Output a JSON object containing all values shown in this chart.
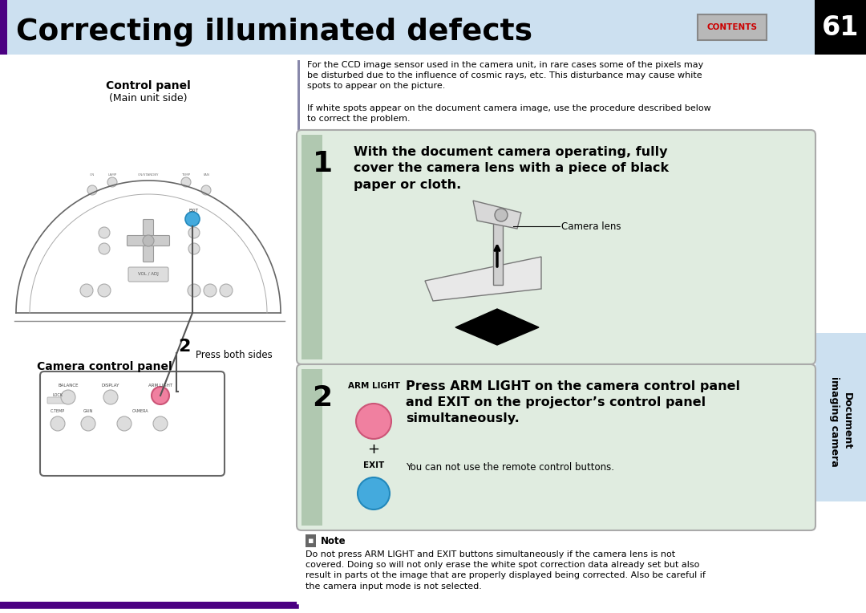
{
  "title": "Correcting illuminated defects",
  "page_number": "61",
  "bg_color": "#ffffff",
  "header_bg": "#cce0f0",
  "header_purple": "#4B0082",
  "tab_bg": "#cce0f0",
  "tab_text": "Document\nimaging camera",
  "contents_text": "CONTENTS",
  "contents_red": "#cc0000",
  "intro_text1": "For the CCD image sensor used in the camera unit, in rare cases some of the pixels may\nbe disturbed due to the influence of cosmic rays, etc. This disturbance may cause white\nspots to appear on the picture.",
  "intro_text2": "If white spots appear on the document camera image, use the procedure described below\nto correct the problem.",
  "step1_text": "With the document camera operating, fully\ncover the camera lens with a piece of black\npaper or cloth.",
  "camera_lens_label": "Camera lens",
  "step2_title": "Press ARM LIGHT on the camera control panel\nand EXIT on the projector’s control panel\nsimultaneously.",
  "arm_light_label": "ARM LIGHT",
  "exit_label": "EXIT",
  "step2_sub": "You can not use the remote control buttons.",
  "note_title": "Note",
  "note_text_bold": "Do not press ARM LIGHT and EXIT buttons simultaneously if the camera lens is not\ncovered. Doing so will not only erase the white spot correction data already set but also\nresult in parts ot the image that are properly displayed being corrected. Also be careful if\nthe camera input mode is not selected.",
  "control_panel_label": "Control panel",
  "control_panel_sub": "(Main unit side)",
  "camera_control_label": "Camera control panel",
  "press_both": "Press both sides",
  "number2_label": "2",
  "step_box_bg": "#e0ece0",
  "step_box_left_bg": "#b0c8b0",
  "step_num_color": "black"
}
